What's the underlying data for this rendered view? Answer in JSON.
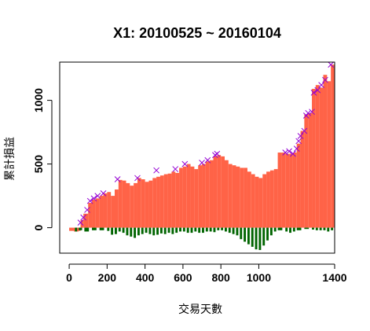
{
  "chart_data": {
    "type": "bar",
    "title": "X1: 20100525 ~ 20160104",
    "xlabel": "交易天數",
    "ylabel": "累計損益",
    "xlim": [
      -50,
      1400
    ],
    "ylim": [
      -200,
      1300
    ],
    "x_ticks": [
      0,
      200,
      400,
      600,
      800,
      1000,
      1400
    ],
    "y_ticks": [
      0,
      500,
      1000
    ],
    "colors": {
      "positive": "#FF6347",
      "negative": "#006400",
      "marker": "#9400D3",
      "frame": "#000000"
    },
    "series": [
      {
        "values": [
          [
            0,
            -25
          ],
          [
            25,
            -30
          ],
          [
            50,
            -25
          ],
          [
            60,
            60
          ],
          [
            75,
            110
          ],
          [
            100,
            195
          ],
          [
            120,
            220
          ],
          [
            140,
            230
          ],
          [
            160,
            250
          ],
          [
            180,
            270
          ],
          [
            200,
            280
          ],
          [
            220,
            250
          ],
          [
            240,
            300
          ],
          [
            260,
            375
          ],
          [
            280,
            370
          ],
          [
            300,
            350
          ],
          [
            320,
            330
          ],
          [
            340,
            350
          ],
          [
            360,
            390
          ],
          [
            380,
            380
          ],
          [
            400,
            360
          ],
          [
            420,
            370
          ],
          [
            440,
            390
          ],
          [
            460,
            400
          ],
          [
            480,
            410
          ],
          [
            500,
            420
          ],
          [
            520,
            425
          ],
          [
            540,
            440
          ],
          [
            560,
            430
          ],
          [
            580,
            470
          ],
          [
            600,
            480
          ],
          [
            620,
            500
          ],
          [
            640,
            480
          ],
          [
            660,
            460
          ],
          [
            680,
            490
          ],
          [
            700,
            500
          ],
          [
            720,
            520
          ],
          [
            740,
            530
          ],
          [
            760,
            560
          ],
          [
            780,
            570
          ],
          [
            800,
            560
          ],
          [
            820,
            530
          ],
          [
            840,
            500
          ],
          [
            860,
            490
          ],
          [
            880,
            480
          ],
          [
            900,
            470
          ],
          [
            920,
            470
          ],
          [
            940,
            440
          ],
          [
            960,
            420
          ],
          [
            980,
            400
          ],
          [
            1000,
            390
          ],
          [
            1020,
            420
          ],
          [
            1040,
            440
          ],
          [
            1060,
            450
          ],
          [
            1080,
            460
          ],
          [
            1100,
            590
          ],
          [
            1120,
            590
          ],
          [
            1140,
            580
          ],
          [
            1160,
            580
          ],
          [
            1180,
            590
          ],
          [
            1200,
            660
          ],
          [
            1220,
            760
          ],
          [
            1240,
            890
          ],
          [
            1260,
            900
          ],
          [
            1280,
            1090
          ],
          [
            1300,
            1120
          ],
          [
            1320,
            1100
          ],
          [
            1340,
            1200
          ],
          [
            1360,
            1150
          ],
          [
            1380,
            1280
          ]
        ],
        "drawdown": [
          [
            30,
            -30
          ],
          [
            50,
            -20
          ],
          [
            80,
            -30
          ],
          [
            120,
            -20
          ],
          [
            160,
            -20
          ],
          [
            200,
            -25
          ],
          [
            220,
            -55
          ],
          [
            240,
            -50
          ],
          [
            260,
            -30
          ],
          [
            280,
            -40
          ],
          [
            300,
            -60
          ],
          [
            320,
            -70
          ],
          [
            340,
            -80
          ],
          [
            360,
            -60
          ],
          [
            380,
            -50
          ],
          [
            400,
            -40
          ],
          [
            420,
            -50
          ],
          [
            440,
            -60
          ],
          [
            460,
            -55
          ],
          [
            480,
            -45
          ],
          [
            500,
            -50
          ],
          [
            520,
            -40
          ],
          [
            540,
            -50
          ],
          [
            560,
            -40
          ],
          [
            580,
            -30
          ],
          [
            600,
            -30
          ],
          [
            620,
            -40
          ],
          [
            640,
            -40
          ],
          [
            660,
            -30
          ],
          [
            680,
            -40
          ],
          [
            700,
            -40
          ],
          [
            720,
            -30
          ],
          [
            740,
            -30
          ],
          [
            760,
            -35
          ],
          [
            780,
            -20
          ],
          [
            800,
            -20
          ],
          [
            820,
            -30
          ],
          [
            840,
            -40
          ],
          [
            860,
            -50
          ],
          [
            880,
            -60
          ],
          [
            900,
            -90
          ],
          [
            920,
            -110
          ],
          [
            940,
            -130
          ],
          [
            960,
            -150
          ],
          [
            980,
            -170
          ],
          [
            1000,
            -175
          ],
          [
            1020,
            -140
          ],
          [
            1040,
            -100
          ],
          [
            1060,
            -60
          ],
          [
            1080,
            -30
          ],
          [
            1100,
            -20
          ],
          [
            1140,
            -30
          ],
          [
            1160,
            -40
          ],
          [
            1180,
            -30
          ],
          [
            1200,
            -20
          ],
          [
            1240,
            -10
          ],
          [
            1280,
            -15
          ],
          [
            1300,
            -20
          ],
          [
            1320,
            -20
          ],
          [
            1340,
            -20
          ],
          [
            1360,
            -30
          ],
          [
            1380,
            -20
          ]
        ],
        "peaks": [
          [
            60,
            40
          ],
          [
            75,
            80
          ],
          [
            95,
            140
          ],
          [
            110,
            210
          ],
          [
            130,
            230
          ],
          [
            150,
            250
          ],
          [
            180,
            270
          ],
          [
            255,
            380
          ],
          [
            360,
            390
          ],
          [
            460,
            450
          ],
          [
            560,
            460
          ],
          [
            610,
            500
          ],
          [
            700,
            510
          ],
          [
            730,
            530
          ],
          [
            770,
            570
          ],
          [
            780,
            580
          ],
          [
            1140,
            590
          ],
          [
            1160,
            600
          ],
          [
            1180,
            580
          ],
          [
            1200,
            620
          ],
          [
            1210,
            680
          ],
          [
            1220,
            720
          ],
          [
            1240,
            760
          ],
          [
            1250,
            880
          ],
          [
            1260,
            900
          ],
          [
            1280,
            910
          ],
          [
            1290,
            1060
          ],
          [
            1310,
            1080
          ],
          [
            1330,
            1120
          ],
          [
            1350,
            1160
          ],
          [
            1380,
            1280
          ]
        ]
      }
    ]
  }
}
